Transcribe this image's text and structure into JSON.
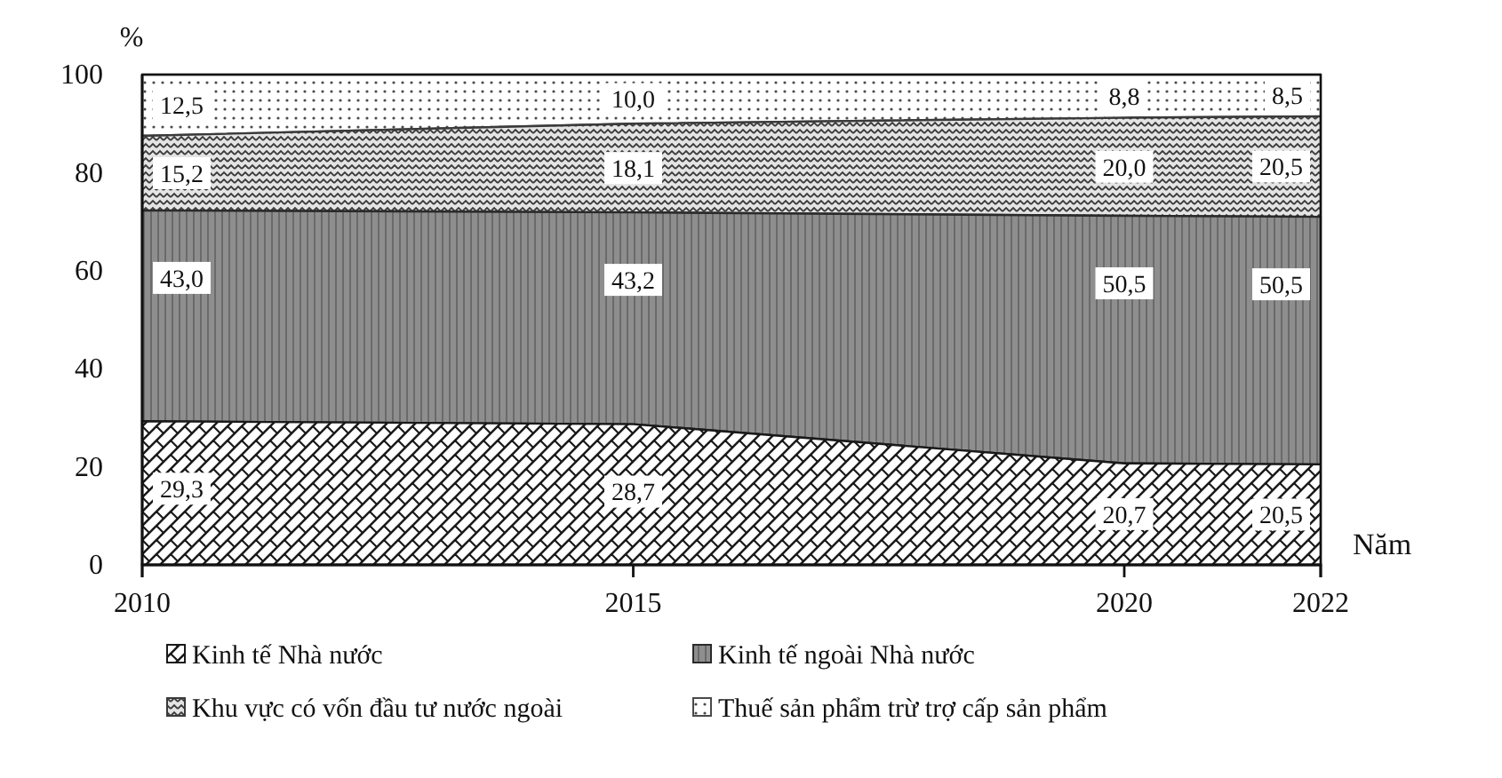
{
  "chart_data": {
    "type": "area",
    "stacked": true,
    "x": [
      2010,
      2015,
      2020,
      2022
    ],
    "xlim": [
      2010,
      2022
    ],
    "xticks": [
      2010,
      2015,
      2020,
      2022
    ],
    "ylim": [
      0,
      100
    ],
    "yticks": [
      0,
      20,
      40,
      60,
      80,
      100
    ],
    "xlabel": "Năm",
    "ylabel": "%",
    "legend": "bottom",
    "grid": false,
    "series": [
      {
        "name": "Kinh tế Nhà nước",
        "color": "#1a1a1a",
        "values": [
          29.3,
          28.7,
          20.7,
          20.5
        ],
        "value_labels": [
          "29,3",
          "28,7",
          "20,7",
          "20,5"
        ]
      },
      {
        "name": "Kinh tế  ngoài Nhà nước",
        "color": "#2a2a2a",
        "values": [
          43.0,
          43.2,
          50.5,
          50.5
        ],
        "value_labels": [
          "43,0",
          "43,2",
          "50,5",
          "50,5"
        ]
      },
      {
        "name": "Khu vực có vốn đầu tư nước ngoài",
        "color": "#3a3a3a",
        "values": [
          15.2,
          18.1,
          20.0,
          20.5
        ],
        "value_labels": [
          "15,2",
          "18,1",
          "20,0",
          "20,5"
        ]
      },
      {
        "name": "Thuế sản phẩm trừ trợ cấp sản phẩm",
        "color": "#4a4a4a",
        "values": [
          12.5,
          10.0,
          8.8,
          8.5
        ],
        "value_labels": [
          "12,5",
          "10,0",
          "8,8",
          "8,5"
        ]
      }
    ]
  }
}
